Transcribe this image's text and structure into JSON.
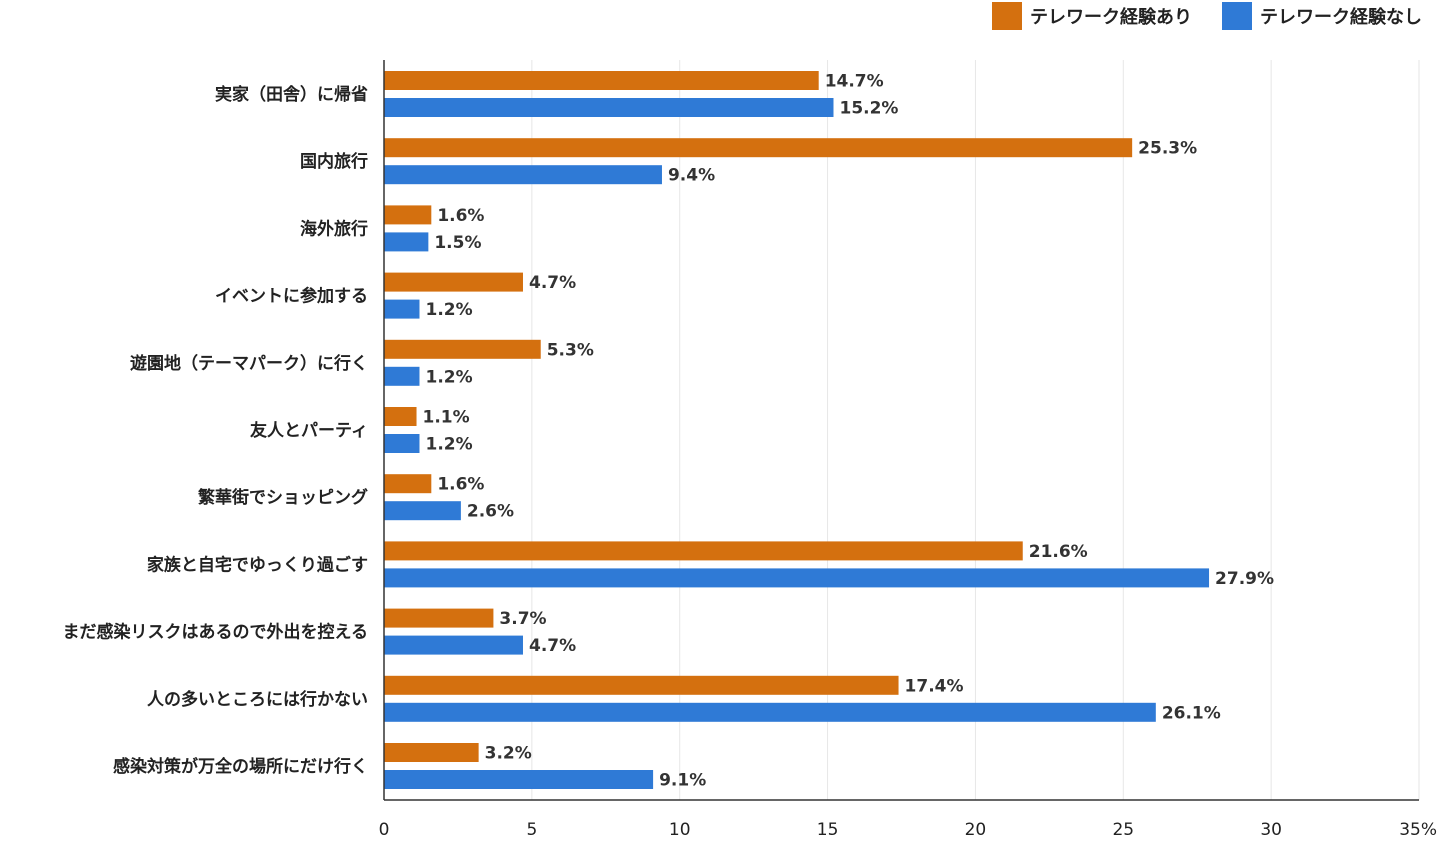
{
  "chart_data": {
    "type": "bar",
    "orientation": "horizontal",
    "categories": [
      "実家（田舎）に帰省",
      "国内旅行",
      "海外旅行",
      "イベントに参加する",
      "遊園地（テーマパーク）に行く",
      "友人とパーティ",
      "繁華街でショッピング",
      "家族と自宅でゆっくり過ごす",
      "まだ感染リスクはあるので外出を控える",
      "人の多いところには行かない",
      "感染対策が万全の場所にだけ行く"
    ],
    "series": [
      {
        "name": "テレワーク経験あり",
        "color": "#d4700f",
        "values": [
          14.7,
          25.3,
          1.6,
          4.7,
          5.3,
          1.1,
          1.6,
          21.6,
          3.7,
          17.4,
          3.2
        ],
        "labels": [
          "14.7%",
          "25.3%",
          "1.6%",
          "4.7%",
          "5.3%",
          "1.1%",
          "1.6%",
          "21.6%",
          "3.7%",
          "17.4%",
          "3.2%"
        ]
      },
      {
        "name": "テレワーク経験なし",
        "color": "#2f7ad6",
        "values": [
          15.2,
          9.4,
          1.5,
          1.2,
          1.2,
          1.2,
          2.6,
          27.9,
          4.7,
          26.1,
          9.1
        ],
        "labels": [
          "15.2%",
          "9.4%",
          "1.5%",
          "1.2%",
          "1.2%",
          "1.2%",
          "2.6%",
          "27.9%",
          "4.7%",
          "26.1%",
          "9.1%"
        ]
      }
    ],
    "xlim": [
      0,
      35
    ],
    "xticks": [
      0,
      5,
      10,
      15,
      20,
      25,
      30,
      35
    ],
    "xtick_labels": [
      "0",
      "5",
      "10",
      "15",
      "20",
      "25",
      "30",
      "35%"
    ],
    "grid": true,
    "legend_position": "top-right",
    "title": "",
    "xlabel": "",
    "ylabel": ""
  }
}
